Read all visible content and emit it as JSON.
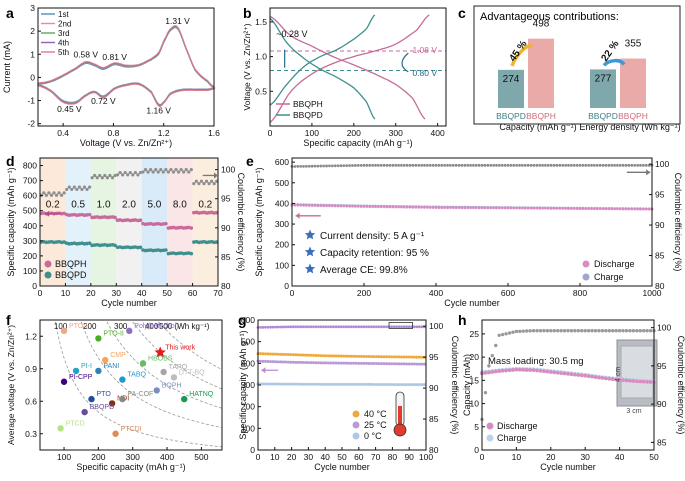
{
  "panels": {
    "a": {
      "label": "a",
      "xlabel": "Voltage (V vs. Zn/Zn²⁺)",
      "ylabel": "Current (mA)",
      "xticks": [
        "0.4",
        "0.8",
        "1.2",
        "1.6"
      ],
      "yticks": [
        "3",
        "2",
        "1",
        "0",
        "-1",
        "-2"
      ],
      "legend": [
        "1st",
        "2nd",
        "3rd",
        "4th",
        "5th"
      ],
      "annotations": [
        "1.31 V",
        "0.58 V",
        "0.81 V",
        "0.45 V",
        "0.72 V",
        "1.16 V"
      ]
    },
    "b": {
      "label": "b",
      "xlabel": "Specific capacity (mAh g⁻¹)",
      "ylabel": "Voltage (V vs. Zn/Zn²⁺)",
      "xticks": [
        "0",
        "100",
        "200",
        "300",
        "400"
      ],
      "yticks": [
        "0.5",
        "1.0",
        "1.5"
      ],
      "legend": [
        "BBQPH",
        "BBQPD"
      ],
      "annotations": [
        "~0.28 V",
        "1.08 V",
        "0.80 V"
      ]
    },
    "c": {
      "label": "c",
      "title": "Advantageous contributions:",
      "group_labels": [
        "Capacity (mAh g⁻¹)",
        "Energy density (Wh kg⁻¹)"
      ],
      "bar_labels": [
        "BBQPD",
        "BBQPH",
        "BBQPD",
        "BBQPH"
      ],
      "bar_values": [
        "274",
        "498",
        "277",
        "355"
      ],
      "increases": [
        "45 %",
        "22 %"
      ]
    },
    "d": {
      "label": "d",
      "xlabel": "Cycle number",
      "ylabel": "Specific capacity (mAh g⁻¹)",
      "ylabel2": "Coulombic efficiency (%)",
      "xticks": [
        "0",
        "10",
        "20",
        "30",
        "40",
        "50",
        "60",
        "70"
      ],
      "yticks": [
        "0",
        "100",
        "200",
        "300",
        "400",
        "500",
        "600",
        "700",
        "800"
      ],
      "y2ticks": [
        "80",
        "85",
        "90",
        "95",
        "100"
      ],
      "rate_labels": [
        "0.2",
        "0.5",
        "1.0",
        "2.0",
        "5.0",
        "8.0",
        "0.2"
      ],
      "legend": [
        "BBQPH",
        "BBQPD"
      ]
    },
    "e": {
      "label": "e",
      "xlabel": "Cycle number",
      "ylabel": "Specific capacity (mAh g⁻¹)",
      "ylabel2": "Coulombic efficiency (%)",
      "xticks": [
        "0",
        "200",
        "400",
        "600",
        "800",
        "1000"
      ],
      "yticks": [
        "0",
        "100",
        "200",
        "300",
        "400",
        "500",
        "600"
      ],
      "y2ticks": [
        "80",
        "85",
        "90",
        "95",
        "100"
      ],
      "info": [
        "Current density: 5 A g⁻¹",
        "Capacity retention: 95 %",
        "Average CE: 99.8%"
      ],
      "legend": [
        "Discharge",
        "Charge"
      ]
    },
    "f": {
      "label": "f",
      "xlabel": "Specific capacity (mAh g⁻¹)",
      "ylabel": "Average voltage (V vs. Zn/Zn²⁺)",
      "xticks": [
        "100",
        "200",
        "300",
        "400",
        "500"
      ],
      "yticks": [
        "0.3",
        "0.6",
        "0.9",
        "1.2"
      ],
      "contours": [
        "100",
        "200",
        "300",
        "400",
        "500 (Wh kg⁻¹)"
      ],
      "points": [
        "PTO-I",
        "PTO-II",
        "Poly(catechol)",
        "This work",
        "CMP",
        "HBOBS",
        "PI-I",
        "PANI",
        "TABQ",
        "TAPQ",
        "PI-CPP",
        "DTT-BQ",
        "BQPH",
        "HATNQ",
        "PTO",
        "NDI",
        "PA-COF",
        "PTCD",
        "PTCDI",
        "BBQPD"
      ]
    },
    "g": {
      "label": "g",
      "xlabel": "Cycle number",
      "ylabel": "Specific capacity (mAh g⁻¹)",
      "ylabel2": "Coulombic efficiency (%)",
      "xticks": [
        "0",
        "10",
        "20",
        "30",
        "40",
        "50",
        "60",
        "70",
        "80",
        "90",
        "100"
      ],
      "yticks": [
        "0",
        "100",
        "200",
        "300",
        "400",
        "500",
        "600"
      ],
      "y2ticks": [
        "80",
        "85",
        "90",
        "95",
        "100"
      ],
      "legend": [
        "40 °C",
        "25 °C",
        "0 °C"
      ]
    },
    "h": {
      "label": "h",
      "xlabel": "Cycle number",
      "ylabel": "Capacity (mAh)",
      "ylabel2": "Coulombic efficiency (%)",
      "xticks": [
        "0",
        "10",
        "20",
        "30",
        "40",
        "50"
      ],
      "yticks": [
        "0",
        "5",
        "10",
        "15",
        "20",
        "25"
      ],
      "y2ticks": [
        "85",
        "90",
        "95",
        "100"
      ],
      "note": "Mass loading: 30.5 mg",
      "dims": [
        "4 cm",
        "3 cm"
      ],
      "legend": [
        "Discharge",
        "Charge"
      ]
    }
  },
  "colors": {
    "a_curves": [
      "#4a8fc0",
      "#e48c9a",
      "#5aa65a",
      "#8a64b0",
      "#e07b8a"
    ],
    "bbqph": "#c86a9a",
    "bbqpd": "#3f8f8f",
    "bar_pd": "#7fa8ad",
    "bar_ph": "#e9aaa8",
    "arrow": "#f0b429",
    "arrow2": "#3c9ad6",
    "discharge": "#d98cc1",
    "charge": "#9ca6cf",
    "star": "#3a6ebd"
  },
  "chart_data": [
    {
      "panel": "a",
      "type": "line",
      "title": "",
      "xlabel": "Voltage (V vs. Zn/Zn²⁺)",
      "ylabel": "Current (mA)",
      "xlim": [
        0.2,
        1.6
      ],
      "ylim": [
        -2.1,
        3.0
      ],
      "x": [
        0.2,
        0.3,
        0.4,
        0.5,
        0.58,
        0.65,
        0.72,
        0.81,
        0.9,
        1.0,
        1.1,
        1.16,
        1.2,
        1.25,
        1.31,
        1.38,
        1.45,
        1.55,
        1.6
      ],
      "series": [
        {
          "name": "1st",
          "oxidation": [
            -0.3,
            -0.2,
            0.05,
            0.35,
            0.6,
            0.5,
            0.35,
            0.55,
            0.45,
            0.5,
            0.75,
            1.0,
            1.5,
            2.0,
            2.1,
            1.2,
            0.3,
            -0.2,
            -0.45
          ],
          "reduction": [
            -0.3,
            -0.55,
            -1.0,
            -1.05,
            -0.75,
            -0.6,
            -0.8,
            -0.45,
            -0.3,
            -0.25,
            -0.6,
            -1.15,
            -1.05,
            -0.7,
            -0.55,
            -0.5,
            -0.5,
            -0.5,
            -0.45
          ]
        },
        {
          "name": "2nd",
          "oxidation": [
            -0.3,
            -0.2,
            0.05,
            0.35,
            0.62,
            0.52,
            0.37,
            0.57,
            0.47,
            0.5,
            0.75,
            1.02,
            1.52,
            2.02,
            2.12,
            1.2,
            0.3,
            -0.2,
            -0.45
          ],
          "reduction": [
            -0.3,
            -0.55,
            -1.02,
            -1.07,
            -0.75,
            -0.6,
            -0.82,
            -0.45,
            -0.3,
            -0.25,
            -0.6,
            -1.17,
            -1.05,
            -0.7,
            -0.55,
            -0.5,
            -0.5,
            -0.5,
            -0.45
          ]
        },
        {
          "name": "3rd",
          "oxidation": [
            -0.3,
            -0.2,
            0.05,
            0.35,
            0.62,
            0.52,
            0.37,
            0.57,
            0.47,
            0.5,
            0.75,
            1.02,
            1.52,
            2.02,
            2.12,
            1.2,
            0.3,
            -0.2,
            -0.45
          ],
          "reduction": [
            -0.3,
            -0.55,
            -1.02,
            -1.07,
            -0.75,
            -0.6,
            -0.82,
            -0.45,
            -0.3,
            -0.25,
            -0.6,
            -1.17,
            -1.05,
            -0.7,
            -0.55,
            -0.5,
            -0.5,
            -0.5,
            -0.45
          ]
        },
        {
          "name": "4th",
          "oxidation": [
            -0.3,
            -0.2,
            0.05,
            0.35,
            0.62,
            0.52,
            0.37,
            0.57,
            0.47,
            0.5,
            0.75,
            1.02,
            1.52,
            2.02,
            2.12,
            1.2,
            0.3,
            -0.2,
            -0.45
          ],
          "reduction": [
            -0.3,
            -0.55,
            -1.02,
            -1.07,
            -0.75,
            -0.6,
            -0.82,
            -0.45,
            -0.3,
            -0.25,
            -0.6,
            -1.17,
            -1.05,
            -0.7,
            -0.55,
            -0.5,
            -0.5,
            -0.5,
            -0.45
          ]
        },
        {
          "name": "5th",
          "oxidation": [
            -0.3,
            -0.2,
            0.05,
            0.35,
            0.62,
            0.52,
            0.37,
            0.57,
            0.47,
            0.5,
            0.75,
            1.02,
            1.52,
            2.02,
            2.12,
            1.2,
            0.3,
            -0.2,
            -0.45
          ],
          "reduction": [
            -0.3,
            -0.55,
            -1.02,
            -1.07,
            -0.75,
            -0.6,
            -0.82,
            -0.45,
            -0.3,
            -0.25,
            -0.6,
            -1.17,
            -1.05,
            -0.7,
            -0.55,
            -0.5,
            -0.5,
            -0.5,
            -0.45
          ]
        }
      ]
    },
    {
      "panel": "b",
      "type": "line",
      "xlim": [
        0,
        420
      ],
      "ylim": [
        0.0,
        1.7
      ],
      "series": [
        {
          "name": "BBQPH charge",
          "x": [
            0,
            50,
            100,
            150,
            200,
            250,
            300,
            350,
            380
          ],
          "y": [
            0.05,
            0.5,
            0.75,
            0.9,
            1.0,
            1.08,
            1.18,
            1.38,
            1.6
          ]
        },
        {
          "name": "BBQPH discharge",
          "x": [
            0,
            50,
            100,
            150,
            200,
            250,
            300,
            340,
            370
          ],
          "y": [
            1.58,
            1.3,
            1.15,
            1.0,
            0.88,
            0.75,
            0.6,
            0.4,
            0.1
          ]
        },
        {
          "name": "BBQPD charge",
          "x": [
            0,
            40,
            80,
            120,
            160,
            200,
            230,
            250
          ],
          "y": [
            0.3,
            0.6,
            0.85,
            1.0,
            1.1,
            1.25,
            1.4,
            1.6
          ]
        },
        {
          "name": "BBQPD discharge",
          "x": [
            0,
            40,
            80,
            120,
            160,
            200,
            230,
            250
          ],
          "y": [
            1.55,
            1.2,
            0.98,
            0.82,
            0.7,
            0.55,
            0.35,
            0.1
          ]
        }
      ],
      "reference_lines": [
        1.08,
        0.8
      ]
    },
    {
      "panel": "c",
      "type": "bar",
      "categories": [
        "BBQPD capacity",
        "BBQPH capacity",
        "BBQPD energy",
        "BBQPH energy"
      ],
      "values": [
        274,
        498,
        277,
        355
      ],
      "ylim": [
        0,
        560
      ]
    },
    {
      "panel": "d",
      "type": "scatter",
      "xlim": [
        0,
        70
      ],
      "ylim": [
        0,
        850
      ],
      "y2lim": [
        80,
        102
      ],
      "rate_segments": [
        [
          0,
          10
        ],
        [
          10,
          20
        ],
        [
          20,
          30
        ],
        [
          30,
          40
        ],
        [
          40,
          50
        ],
        [
          50,
          60
        ],
        [
          60,
          70
        ]
      ],
      "series": [
        {
          "name": "BBQPH",
          "values": [
            480,
            470,
            455,
            435,
            410,
            385,
            485
          ]
        },
        {
          "name": "BBQPD",
          "values": [
            290,
            280,
            270,
            255,
            235,
            215,
            290
          ]
        },
        {
          "name": "CE",
          "values": [
            96,
            97,
            99,
            99.5,
            100,
            100,
            98
          ]
        }
      ]
    },
    {
      "panel": "e",
      "type": "scatter",
      "xlim": [
        0,
        1000
      ],
      "ylim": [
        0,
        620
      ],
      "y2lim": [
        80,
        101
      ],
      "series": [
        {
          "name": "Discharge",
          "x": [
            0,
            200,
            400,
            600,
            800,
            1000
          ],
          "y": [
            392,
            385,
            380,
            378,
            375,
            372
          ]
        },
        {
          "name": "Charge",
          "x": [
            0,
            200,
            400,
            600,
            800,
            1000
          ],
          "y": [
            395,
            388,
            383,
            380,
            377,
            374
          ]
        },
        {
          "name": "CE",
          "x": [
            0,
            200,
            400,
            600,
            800,
            1000
          ],
          "y": [
            99.6,
            99.8,
            99.8,
            99.8,
            99.8,
            99.8
          ]
        }
      ]
    },
    {
      "panel": "f",
      "type": "scatter",
      "xlim": [
        30,
        560
      ],
      "ylim": [
        0.15,
        1.35
      ],
      "points": [
        {
          "name": "PTO-I",
          "x": 100,
          "y": 1.25
        },
        {
          "name": "PTO-II",
          "x": 200,
          "y": 1.18
        },
        {
          "name": "Poly(catechol)",
          "x": 290,
          "y": 1.25
        },
        {
          "name": "This work",
          "x": 380,
          "y": 1.05
        },
        {
          "name": "CMP",
          "x": 220,
          "y": 0.98
        },
        {
          "name": "HBOBS",
          "x": 330,
          "y": 0.95
        },
        {
          "name": "PI-I",
          "x": 135,
          "y": 0.88
        },
        {
          "name": "PANI",
          "x": 200,
          "y": 0.88
        },
        {
          "name": "TABQ",
          "x": 270,
          "y": 0.8
        },
        {
          "name": "TAPQ",
          "x": 390,
          "y": 0.87
        },
        {
          "name": "PI-CPP",
          "x": 100,
          "y": 0.78
        },
        {
          "name": "DTT-BQ",
          "x": 420,
          "y": 0.82
        },
        {
          "name": "BQPH",
          "x": 370,
          "y": 0.7
        },
        {
          "name": "HATNQ",
          "x": 450,
          "y": 0.62
        },
        {
          "name": "PTO",
          "x": 180,
          "y": 0.62
        },
        {
          "name": "NDI",
          "x": 240,
          "y": 0.58
        },
        {
          "name": "PA-COF",
          "x": 270,
          "y": 0.62
        },
        {
          "name": "PTCD",
          "x": 90,
          "y": 0.35
        },
        {
          "name": "PTCDI",
          "x": 250,
          "y": 0.3
        },
        {
          "name": "BBQPD",
          "x": 160,
          "y": 0.5
        }
      ]
    },
    {
      "panel": "g",
      "type": "scatter",
      "xlim": [
        0,
        100
      ],
      "ylim": [
        0,
        600
      ],
      "y2lim": [
        80,
        101
      ],
      "series": [
        {
          "name": "40 °C",
          "x": [
            0,
            20,
            40,
            60,
            80,
            100
          ],
          "y": [
            445,
            440,
            435,
            432,
            430,
            428
          ]
        },
        {
          "name": "25 °C",
          "x": [
            0,
            20,
            40,
            60,
            80,
            100
          ],
          "y": [
            410,
            405,
            402,
            400,
            398,
            396
          ]
        },
        {
          "name": "0 °C",
          "x": [
            0,
            20,
            40,
            60,
            80,
            100
          ],
          "y": [
            305,
            304,
            303,
            303,
            302,
            302
          ]
        },
        {
          "name": "CE",
          "x": [
            0,
            20,
            40,
            60,
            80,
            100
          ],
          "y": [
            99.8,
            99.9,
            99.9,
            99.9,
            99.9,
            99.9
          ]
        }
      ]
    },
    {
      "panel": "h",
      "type": "scatter",
      "xlim": [
        0,
        50
      ],
      "ylim": [
        0,
        28
      ],
      "y2lim": [
        84,
        101
      ],
      "series": [
        {
          "name": "Discharge",
          "x": [
            0,
            5,
            10,
            15,
            20,
            25,
            30,
            35,
            40,
            45,
            50
          ],
          "y": [
            16.5,
            17.0,
            17.3,
            17.2,
            16.8,
            16.4,
            16.0,
            15.5,
            15.1,
            14.8,
            14.6
          ]
        },
        {
          "name": "Charge",
          "x": [
            0,
            5,
            10,
            15,
            20,
            25,
            30,
            35,
            40,
            45,
            50
          ],
          "y": [
            16.8,
            17.2,
            17.5,
            17.4,
            17.0,
            16.6,
            16.2,
            15.7,
            15.3,
            15.0,
            14.8
          ]
        },
        {
          "name": "CE",
          "x": [
            0,
            2,
            5,
            10,
            15,
            20,
            30,
            40,
            50
          ],
          "y": [
            88,
            95,
            99,
            99.5,
            99.6,
            99.6,
            99.6,
            99.6,
            99.6
          ]
        }
      ]
    }
  ]
}
